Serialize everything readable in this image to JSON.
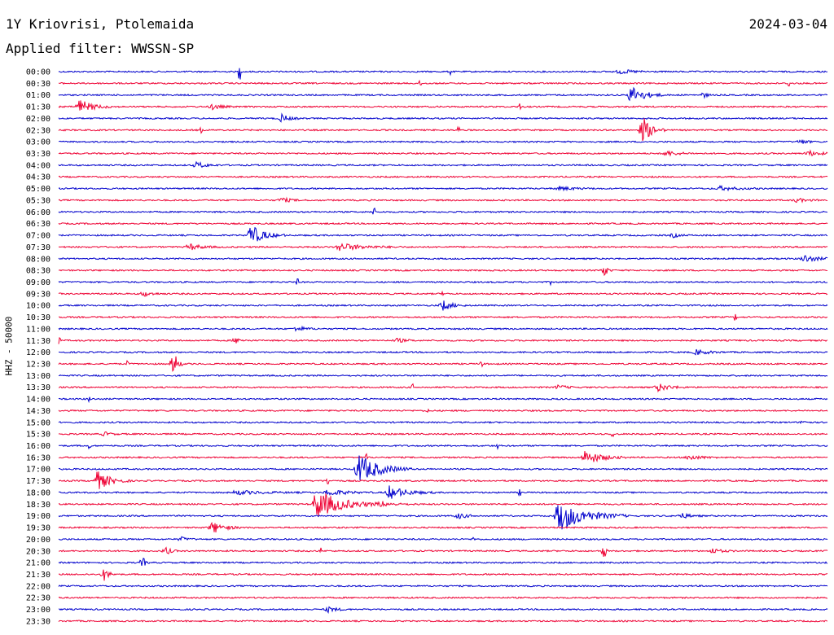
{
  "header": {
    "station": "1Y Kriovrisi, Ptolemaida",
    "date": "2024-03-04",
    "filter": "Applied filter: WWSSN-SP"
  },
  "chart_data": {
    "type": "line",
    "ylabel": "HHZ - 50000",
    "trace_colors": [
      "#0000cc",
      "#ee0033"
    ],
    "rows": [
      {
        "label": "00:00",
        "events": [
          [
            0.235,
            0.002,
            1.2
          ],
          [
            0.51,
            0.002,
            0.6
          ],
          [
            0.73,
            0.05,
            0.3
          ]
        ]
      },
      {
        "label": "00:30",
        "events": [
          [
            0.47,
            0.003,
            0.4
          ],
          [
            0.95,
            0.003,
            0.5
          ]
        ]
      },
      {
        "label": "01:00",
        "events": [
          [
            0.745,
            0.045,
            1.4
          ],
          [
            0.84,
            0.01,
            0.4
          ]
        ]
      },
      {
        "label": "01:30",
        "events": [
          [
            0.027,
            0.045,
            1.1
          ],
          [
            0.2,
            0.03,
            0.4
          ],
          [
            0.6,
            0.002,
            0.7
          ]
        ]
      },
      {
        "label": "02:00",
        "events": [
          [
            0.29,
            0.025,
            0.6
          ],
          [
            0.01,
            0.002,
            0.4
          ]
        ]
      },
      {
        "label": "02:30",
        "events": [
          [
            0.76,
            0.03,
            2.0
          ],
          [
            0.185,
            0.002,
            0.4
          ],
          [
            0.52,
            0.002,
            0.4
          ]
        ]
      },
      {
        "label": "03:00",
        "events": [
          [
            0.965,
            0.02,
            0.4
          ]
        ]
      },
      {
        "label": "03:30",
        "events": [
          [
            0.79,
            0.04,
            0.4
          ],
          [
            0.975,
            0.04,
            0.4
          ]
        ]
      },
      {
        "label": "04:00",
        "events": [
          [
            0.18,
            0.03,
            0.5
          ]
        ]
      },
      {
        "label": "04:30",
        "events": []
      },
      {
        "label": "05:00",
        "events": [
          [
            0.65,
            0.05,
            0.3
          ],
          [
            0.86,
            0.06,
            0.3
          ]
        ]
      },
      {
        "label": "05:30",
        "events": [
          [
            0.29,
            0.03,
            0.4
          ],
          [
            0.96,
            0.03,
            0.3
          ]
        ]
      },
      {
        "label": "06:00",
        "events": [
          [
            0.41,
            0.002,
            0.5
          ]
        ]
      },
      {
        "label": "06:30",
        "events": []
      },
      {
        "label": "07:00",
        "events": [
          [
            0.25,
            0.045,
            1.6
          ],
          [
            0.8,
            0.02,
            0.3
          ]
        ]
      },
      {
        "label": "07:30",
        "events": [
          [
            0.17,
            0.04,
            0.5
          ],
          [
            0.365,
            0.08,
            0.6
          ]
        ]
      },
      {
        "label": "08:00",
        "events": [
          [
            0.97,
            0.04,
            0.6
          ]
        ]
      },
      {
        "label": "08:30",
        "events": [
          [
            0.71,
            0.01,
            1.0
          ]
        ]
      },
      {
        "label": "09:00",
        "events": [
          [
            0.31,
            0.002,
            0.4
          ],
          [
            0.64,
            0.002,
            0.3
          ]
        ]
      },
      {
        "label": "09:30",
        "events": [
          [
            0.11,
            0.03,
            0.4
          ],
          [
            0.5,
            0.002,
            0.4
          ]
        ]
      },
      {
        "label": "10:00",
        "events": [
          [
            0.5,
            0.03,
            0.8
          ]
        ]
      },
      {
        "label": "10:30",
        "events": [
          [
            0.88,
            0.002,
            0.5
          ]
        ]
      },
      {
        "label": "11:00",
        "events": [
          [
            0.31,
            0.03,
            0.4
          ]
        ]
      },
      {
        "label": "11:30",
        "events": [
          [
            0.0,
            0.005,
            0.8
          ],
          [
            0.23,
            0.02,
            0.4
          ],
          [
            0.44,
            0.03,
            0.3
          ]
        ]
      },
      {
        "label": "12:00",
        "events": [
          [
            0.83,
            0.04,
            0.4
          ]
        ]
      },
      {
        "label": "12:30",
        "events": [
          [
            0.15,
            0.012,
            2.2
          ],
          [
            0.09,
            0.002,
            0.4
          ],
          [
            0.55,
            0.002,
            0.4
          ]
        ]
      },
      {
        "label": "13:00",
        "events": []
      },
      {
        "label": "13:30",
        "events": [
          [
            0.78,
            0.04,
            0.6
          ],
          [
            0.46,
            0.002,
            0.4
          ],
          [
            0.65,
            0.03,
            0.3
          ]
        ]
      },
      {
        "label": "14:00",
        "events": [
          [
            0.04,
            0.002,
            0.4
          ]
        ]
      },
      {
        "label": "14:30",
        "events": [
          [
            0.48,
            0.002,
            0.4
          ]
        ]
      },
      {
        "label": "15:00",
        "events": [
          [
            0.97,
            0.01,
            0.4
          ]
        ]
      },
      {
        "label": "15:30",
        "events": [
          [
            0.72,
            0.002,
            0.5
          ],
          [
            0.06,
            0.02,
            0.3
          ]
        ]
      },
      {
        "label": "16:00",
        "events": [
          [
            0.04,
            0.002,
            0.4
          ],
          [
            0.57,
            0.002,
            0.4
          ]
        ]
      },
      {
        "label": "16:30",
        "events": [
          [
            0.685,
            0.055,
            1.1
          ],
          [
            0.82,
            0.04,
            0.4
          ],
          [
            0.4,
            0.002,
            0.5
          ]
        ]
      },
      {
        "label": "17:00",
        "events": [
          [
            0.39,
            0.07,
            2.4
          ]
        ]
      },
      {
        "label": "17:30",
        "events": [
          [
            0.05,
            0.045,
            1.5
          ],
          [
            0.35,
            0.002,
            0.6
          ]
        ]
      },
      {
        "label": "18:00",
        "events": [
          [
            0.43,
            0.06,
            1.0
          ],
          [
            0.23,
            0.1,
            0.3
          ],
          [
            0.35,
            0.06,
            0.5
          ],
          [
            0.6,
            0.002,
            0.4
          ]
        ]
      },
      {
        "label": "18:30",
        "events": [
          [
            0.335,
            0.09,
            2.2
          ],
          [
            0.42,
            0.05,
            0.3
          ]
        ]
      },
      {
        "label": "19:00",
        "events": [
          [
            0.65,
            0.09,
            2.4
          ],
          [
            0.52,
            0.03,
            0.4
          ],
          [
            0.81,
            0.03,
            0.4
          ]
        ]
      },
      {
        "label": "19:30",
        "events": [
          [
            0.2,
            0.04,
            0.9
          ]
        ]
      },
      {
        "label": "20:00",
        "events": [
          [
            0.54,
            0.002,
            0.5
          ],
          [
            0.16,
            0.02,
            0.3
          ]
        ]
      },
      {
        "label": "20:30",
        "events": [
          [
            0.14,
            0.015,
            0.6
          ],
          [
            0.71,
            0.005,
            1.2
          ],
          [
            0.85,
            0.03,
            0.4
          ],
          [
            0.34,
            0.002,
            0.4
          ]
        ]
      },
      {
        "label": "21:00",
        "events": [
          [
            0.11,
            0.008,
            0.8
          ]
        ]
      },
      {
        "label": "21:30",
        "events": [
          [
            0.06,
            0.015,
            1.0
          ]
        ]
      },
      {
        "label": "22:00",
        "events": []
      },
      {
        "label": "22:30",
        "events": []
      },
      {
        "label": "23:00",
        "events": [
          [
            0.35,
            0.03,
            0.4
          ]
        ]
      },
      {
        "label": "23:30",
        "events": []
      }
    ]
  }
}
